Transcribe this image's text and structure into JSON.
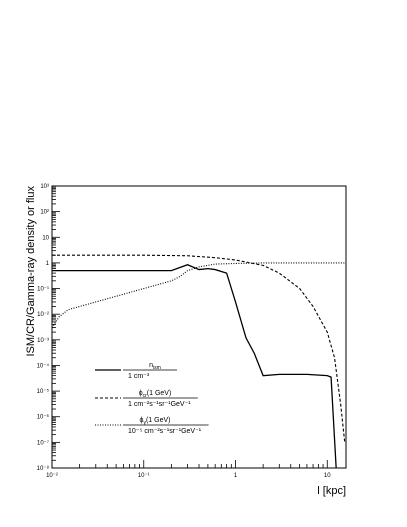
{
  "chart_data": {
    "type": "line",
    "title": "",
    "xlabel": "l [kpc]",
    "ylabel": "ISM/CR/Gamma-ray density or flux",
    "xscale": "log",
    "yscale": "log",
    "xlim": [
      0.01,
      16
    ],
    "ylim": [
      1e-08,
      1000
    ],
    "x_tick_labels": [
      "10⁻²",
      "10⁻¹",
      "1",
      "10"
    ],
    "y_tick_labels": [
      "10⁻⁸",
      "10⁻⁷",
      "10⁻⁶",
      "10⁻⁵",
      "10⁻⁴",
      "10⁻³",
      "10⁻²",
      "10⁻¹",
      "1",
      "10",
      "10²",
      "10³"
    ],
    "grid": false,
    "legend_position": "lower-left",
    "series": [
      {
        "name_main": "n",
        "name_sub": "ism",
        "name_den": "1 cm⁻³",
        "style": "solid",
        "points": [
          [
            0.01,
            0.5
          ],
          [
            0.2,
            0.5
          ],
          [
            0.3,
            0.85
          ],
          [
            0.4,
            0.55
          ],
          [
            0.5,
            0.6
          ],
          [
            0.6,
            0.55
          ],
          [
            0.8,
            0.4
          ],
          [
            1.0,
            0.03
          ],
          [
            1.3,
            0.0012
          ],
          [
            1.6,
            0.0003
          ],
          [
            2.0,
            4e-05
          ],
          [
            3.0,
            4.5e-05
          ],
          [
            6.0,
            4.5e-05
          ],
          [
            10.0,
            4e-05
          ],
          [
            11.0,
            3.5e-05
          ],
          [
            12.5,
            1e-08
          ]
        ]
      },
      {
        "name_main": "ϕ",
        "name_sub": "cr",
        "name_arg": "(1 GeV)",
        "name_den": "1 cm⁻²s⁻¹sr⁻¹GeV⁻¹",
        "style": "dashed",
        "points": [
          [
            0.01,
            2.0
          ],
          [
            0.1,
            2.0
          ],
          [
            0.3,
            1.9
          ],
          [
            0.6,
            1.6
          ],
          [
            1.0,
            1.3
          ],
          [
            2.0,
            0.8
          ],
          [
            3.0,
            0.4
          ],
          [
            5.0,
            0.1
          ],
          [
            7.0,
            0.02
          ],
          [
            10.0,
            0.002
          ],
          [
            12.0,
            0.0002
          ],
          [
            14.0,
            3e-06
          ],
          [
            15.5,
            1e-07
          ]
        ]
      },
      {
        "name_main": "ϕ",
        "name_sub": "γ",
        "name_arg": "(1 GeV)",
        "name_den": "10⁻⁵ cm⁻²s⁻¹sr⁻¹GeV⁻¹",
        "style": "dotted",
        "points": [
          [
            0.01,
            0.003
          ],
          [
            0.012,
            0.008
          ],
          [
            0.015,
            0.015
          ],
          [
            0.02,
            0.02
          ],
          [
            0.03,
            0.03
          ],
          [
            0.05,
            0.05
          ],
          [
            0.1,
            0.1
          ],
          [
            0.15,
            0.15
          ],
          [
            0.2,
            0.2
          ],
          [
            0.25,
            0.3
          ],
          [
            0.3,
            0.5
          ],
          [
            0.4,
            0.7
          ],
          [
            0.6,
            0.9
          ],
          [
            1.0,
            0.95
          ],
          [
            2.0,
            1.0
          ],
          [
            16.0,
            1.0
          ]
        ]
      }
    ]
  }
}
